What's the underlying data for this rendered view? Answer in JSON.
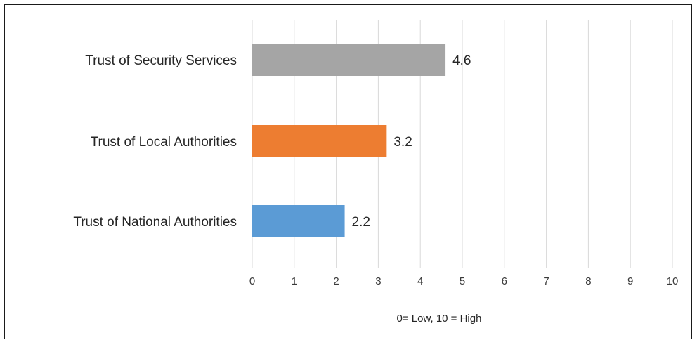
{
  "chart_data": {
    "type": "bar",
    "orientation": "horizontal",
    "categories": [
      "Trust of Security Services",
      "Trust of Local Authorities",
      "Trust of National Authorities"
    ],
    "values": [
      4.6,
      3.2,
      2.2
    ],
    "bar_colors": [
      "#a5a5a5",
      "#ed7d31",
      "#5b9bd5"
    ],
    "data_labels": [
      "4.6",
      "3.2",
      "2.2"
    ],
    "x_ticks": [
      "0",
      "1",
      "2",
      "3",
      "4",
      "5",
      "6",
      "7",
      "8",
      "9",
      "10"
    ],
    "xlim": [
      0,
      10
    ],
    "xlabel": "0= Low, 10 = High",
    "title": "",
    "grid": "vertical",
    "legend": "none"
  }
}
